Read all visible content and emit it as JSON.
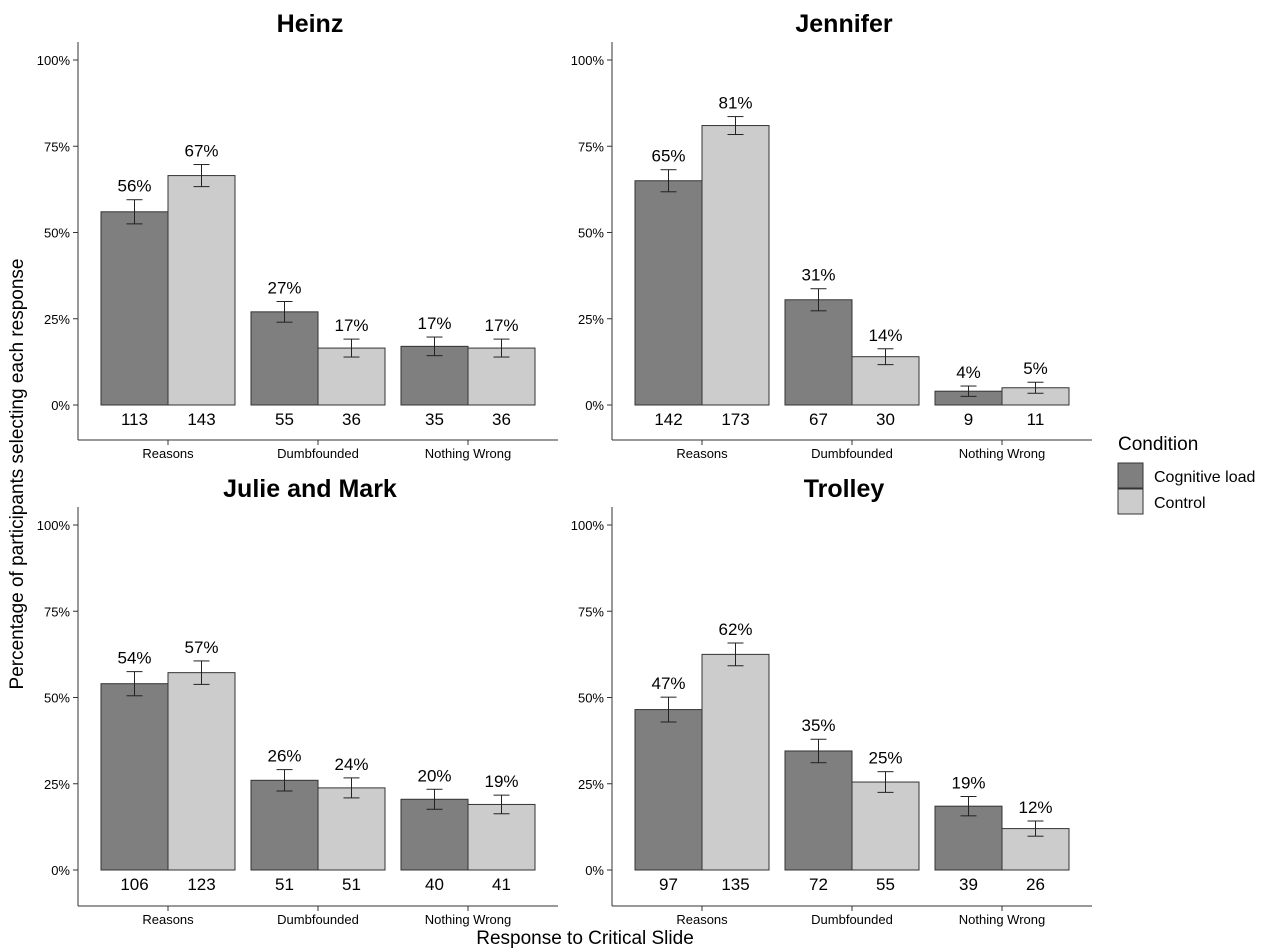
{
  "colors": {
    "cognitive_load": "#7f7f7f",
    "control": "#cccccc",
    "axis": "#333333",
    "text": "#000000"
  },
  "y_axis_title": "Percentage of participants selecting each response",
  "x_axis_title": "Response to Critical Slide",
  "legend": {
    "title": "Condition",
    "items": [
      "Cognitive load",
      "Control"
    ]
  },
  "chart_data": [
    {
      "type": "bar",
      "title": "Heinz",
      "categories": [
        "Reasons",
        "Dumbfounded",
        "Nothing Wrong"
      ],
      "ylim": [
        0,
        1
      ],
      "yticks": [
        "0%",
        "25%",
        "50%",
        "75%",
        "100%"
      ],
      "series": [
        {
          "name": "Cognitive load",
          "values": [
            0.56,
            0.27,
            0.17
          ],
          "labels": [
            "56%",
            "27%",
            "17%"
          ],
          "counts": [
            "113",
            "55",
            "35"
          ],
          "err": [
            0.035,
            0.03,
            0.027
          ]
        },
        {
          "name": "Control",
          "values": [
            0.665,
            0.165,
            0.165
          ],
          "labels": [
            "67%",
            "17%",
            "17%"
          ],
          "counts": [
            "143",
            "36",
            "36"
          ],
          "err": [
            0.032,
            0.026,
            0.026
          ]
        }
      ]
    },
    {
      "type": "bar",
      "title": "Jennifer",
      "categories": [
        "Reasons",
        "Dumbfounded",
        "Nothing Wrong"
      ],
      "ylim": [
        0,
        1
      ],
      "yticks": [
        "0%",
        "25%",
        "50%",
        "75%",
        "100%"
      ],
      "series": [
        {
          "name": "Cognitive load",
          "values": [
            0.65,
            0.305,
            0.04
          ],
          "labels": [
            "65%",
            "31%",
            "4%"
          ],
          "counts": [
            "142",
            "67",
            "9"
          ],
          "err": [
            0.032,
            0.032,
            0.015
          ]
        },
        {
          "name": "Control",
          "values": [
            0.81,
            0.14,
            0.05
          ],
          "labels": [
            "81%",
            "14%",
            "5%"
          ],
          "counts": [
            "173",
            "30",
            "11"
          ],
          "err": [
            0.026,
            0.023,
            0.016
          ]
        }
      ]
    },
    {
      "type": "bar",
      "title": "Julie and Mark",
      "categories": [
        "Reasons",
        "Dumbfounded",
        "Nothing Wrong"
      ],
      "ylim": [
        0,
        1
      ],
      "yticks": [
        "0%",
        "25%",
        "50%",
        "75%",
        "100%"
      ],
      "series": [
        {
          "name": "Cognitive load",
          "values": [
            0.54,
            0.26,
            0.205
          ],
          "labels": [
            "54%",
            "26%",
            "20%"
          ],
          "counts": [
            "106",
            "51",
            "40"
          ],
          "err": [
            0.035,
            0.031,
            0.029
          ]
        },
        {
          "name": "Control",
          "values": [
            0.572,
            0.238,
            0.19
          ],
          "labels": [
            "57%",
            "24%",
            "19%"
          ],
          "counts": [
            "123",
            "51",
            "41"
          ],
          "err": [
            0.034,
            0.029,
            0.027
          ]
        }
      ]
    },
    {
      "type": "bar",
      "title": "Trolley",
      "categories": [
        "Reasons",
        "Dumbfounded",
        "Nothing Wrong"
      ],
      "ylim": [
        0,
        1
      ],
      "yticks": [
        "0%",
        "25%",
        "50%",
        "75%",
        "100%"
      ],
      "series": [
        {
          "name": "Cognitive load",
          "values": [
            0.465,
            0.345,
            0.185
          ],
          "labels": [
            "47%",
            "35%",
            "19%"
          ],
          "counts": [
            "97",
            "72",
            "39"
          ],
          "err": [
            0.036,
            0.034,
            0.028
          ]
        },
        {
          "name": "Control",
          "values": [
            0.625,
            0.255,
            0.12
          ],
          "labels": [
            "62%",
            "25%",
            "12%"
          ],
          "counts": [
            "135",
            "55",
            "26"
          ],
          "err": [
            0.033,
            0.03,
            0.022
          ]
        }
      ]
    }
  ]
}
